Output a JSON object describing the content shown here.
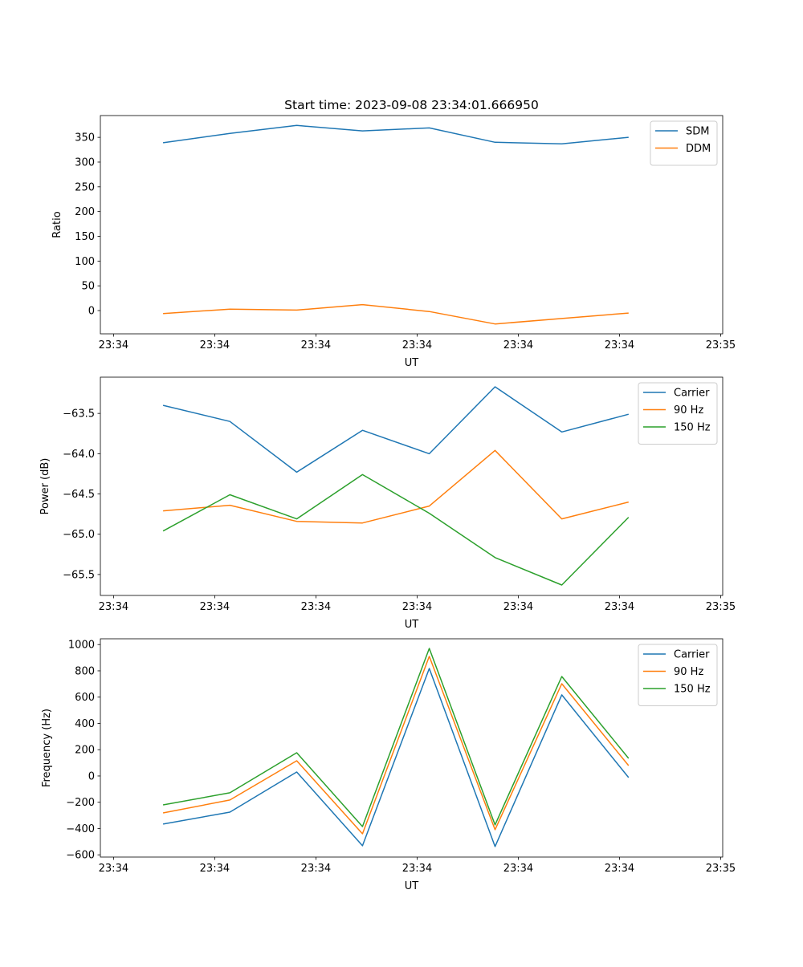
{
  "chart_data": [
    {
      "type": "line",
      "title": "Start time: 2023-09-08 23:34:01.666950",
      "xlabel": "UT",
      "ylabel": "Ratio",
      "x_unit": "seconds after 23:34:00",
      "x": [
        4.9,
        11.5,
        18.1,
        24.6,
        31.2,
        37.7,
        44.3,
        50.9
      ],
      "xlim": [
        -1.3,
        60.2
      ],
      "xticks": [
        0,
        10,
        20,
        30,
        40,
        50,
        60
      ],
      "xticklabels": [
        "23:34",
        "23:34",
        "23:34",
        "23:34",
        "23:34",
        "23:34",
        "23:35"
      ],
      "ylim": [
        -47,
        394
      ],
      "yticks": [
        0,
        50,
        100,
        150,
        200,
        250,
        300,
        350
      ],
      "yticklabels": [
        "0",
        "50",
        "100",
        "150",
        "200",
        "250",
        "300",
        "350"
      ],
      "legend": "top-right",
      "series": [
        {
          "name": "SDM",
          "color": "#1f77b4",
          "values": [
            339,
            358,
            374,
            363,
            369,
            340,
            337,
            350
          ]
        },
        {
          "name": "DDM",
          "color": "#ff7f0e",
          "values": [
            -6,
            3,
            1,
            12,
            -2,
            -27,
            -16,
            -5
          ]
        }
      ]
    },
    {
      "type": "line",
      "title": "",
      "xlabel": "UT",
      "ylabel": "Power (dB)",
      "x": [
        4.9,
        11.5,
        18.1,
        24.6,
        31.2,
        37.7,
        44.3,
        50.9
      ],
      "xlim": [
        -1.3,
        60.2
      ],
      "xticks": [
        0,
        10,
        20,
        30,
        40,
        50,
        60
      ],
      "xticklabels": [
        "23:34",
        "23:34",
        "23:34",
        "23:34",
        "23:34",
        "23:34",
        "23:35"
      ],
      "ylim": [
        -65.76,
        -63.05
      ],
      "yticks": [
        -65.5,
        -65.0,
        -64.5,
        -64.0,
        -63.5
      ],
      "yticklabels": [
        "−65.5",
        "−65.0",
        "−64.5",
        "−64.0",
        "−63.5"
      ],
      "legend": "top-right",
      "series": [
        {
          "name": "Carrier",
          "color": "#1f77b4",
          "values": [
            -63.4,
            -63.6,
            -64.23,
            -63.71,
            -64.0,
            -63.17,
            -63.73,
            -63.51
          ]
        },
        {
          "name": "90 Hz",
          "color": "#ff7f0e",
          "values": [
            -64.71,
            -64.64,
            -64.84,
            -64.86,
            -64.65,
            -63.96,
            -64.81,
            -64.6
          ]
        },
        {
          "name": "150 Hz",
          "color": "#2ca02c",
          "values": [
            -64.96,
            -64.51,
            -64.81,
            -64.26,
            -64.74,
            -65.29,
            -65.63,
            -64.79
          ]
        }
      ]
    },
    {
      "type": "line",
      "title": "",
      "xlabel": "UT",
      "ylabel": "Frequency (Hz)",
      "x": [
        4.9,
        11.5,
        18.1,
        24.6,
        31.2,
        37.7,
        44.3,
        50.9
      ],
      "xlim": [
        -1.3,
        60.2
      ],
      "xticks": [
        0,
        10,
        20,
        30,
        40,
        50,
        60
      ],
      "xticklabels": [
        "23:34",
        "23:34",
        "23:34",
        "23:34",
        "23:34",
        "23:34",
        "23:35"
      ],
      "ylim": [
        -617,
        1044
      ],
      "yticks": [
        -600,
        -400,
        -200,
        0,
        200,
        400,
        600,
        800,
        1000
      ],
      "yticklabels": [
        "−600",
        "−400",
        "−200",
        "0",
        "200",
        "400",
        "600",
        "800",
        "1000"
      ],
      "legend": "top-right",
      "series": [
        {
          "name": "Carrier",
          "color": "#1f77b4",
          "values": [
            -366,
            -275,
            30,
            -531,
            818,
            -537,
            617,
            -12
          ]
        },
        {
          "name": "90 Hz",
          "color": "#ff7f0e",
          "values": [
            -281,
            -183,
            116,
            -440,
            910,
            -409,
            702,
            79
          ]
        },
        {
          "name": "150 Hz",
          "color": "#2ca02c",
          "values": [
            -220,
            -128,
            177,
            -385,
            971,
            -372,
            757,
            134
          ]
        }
      ]
    }
  ]
}
